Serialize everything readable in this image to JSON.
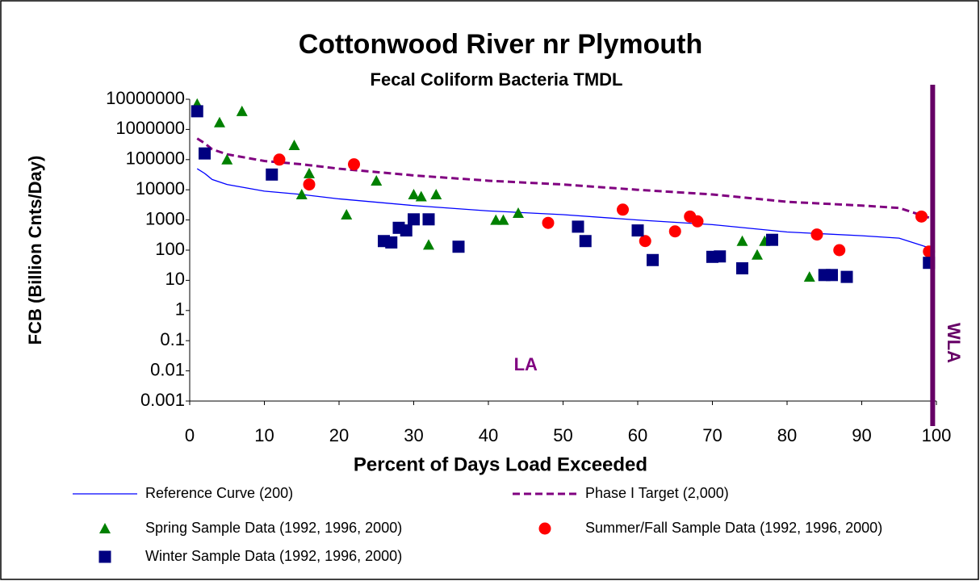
{
  "chart_data": {
    "type": "scatter",
    "title": "Cottonwood River nr Plymouth",
    "subtitle": "Fecal Coliform Bacteria TMDL",
    "x_label": "Percent of Days Load Exceeded",
    "y_label": "FCB (Billion Cnts/Day)",
    "xlim": [
      0,
      100
    ],
    "xticks": [
      0,
      10,
      20,
      30,
      40,
      50,
      60,
      70,
      80,
      90,
      100
    ],
    "ylim": [
      0.001,
      10000000
    ],
    "yticks": [
      0.001,
      0.01,
      0.1,
      1,
      10,
      100,
      1000,
      10000,
      100000,
      1000000,
      10000000
    ],
    "y_scale": "log",
    "grid": false,
    "annotations": [
      {
        "text": "LA",
        "x": 45,
        "y": 0.015,
        "color": "#800080"
      }
    ],
    "reference_line": {
      "label": "WLA",
      "x": 99.5,
      "color": "#660066"
    },
    "series": [
      {
        "name": "Reference Curve (200)",
        "style": "line",
        "color": "#0000ff",
        "x": [
          1,
          2,
          3,
          5,
          10,
          15,
          20,
          30,
          40,
          50,
          60,
          70,
          80,
          90,
          95,
          99
        ],
        "values": [
          50000,
          35000,
          22000,
          15000,
          9000,
          7000,
          5000,
          3000,
          2000,
          1500,
          1000,
          700,
          400,
          300,
          250,
          120
        ]
      },
      {
        "name": "Phase I Target (2,000)",
        "style": "dashed",
        "color": "#800080",
        "x": [
          1,
          2,
          3,
          5,
          10,
          15,
          20,
          30,
          40,
          50,
          60,
          70,
          80,
          90,
          95,
          99
        ],
        "values": [
          500000,
          350000,
          220000,
          150000,
          90000,
          70000,
          50000,
          30000,
          20000,
          15000,
          10000,
          7000,
          4000,
          3000,
          2500,
          1200
        ]
      },
      {
        "name": "Spring Sample Data (1992, 1996, 2000)",
        "style": "triangle",
        "color": "#008000",
        "x": [
          1,
          4,
          5,
          7,
          14,
          15,
          16,
          21,
          25,
          30,
          31,
          32,
          33,
          41,
          42,
          44,
          74,
          76,
          77,
          83
        ],
        "values": [
          7000000,
          1700000,
          100000,
          4000000,
          300000,
          7000,
          35000,
          1500,
          20000,
          7000,
          6000,
          150,
          7000,
          1000,
          1000,
          1700,
          200,
          70,
          200,
          13
        ]
      },
      {
        "name": "Summer/Fall Sample Data (1992, 1996, 2000)",
        "style": "circle",
        "color": "#ff0000",
        "x": [
          12,
          16,
          22,
          48,
          58,
          61,
          65,
          67,
          68,
          84,
          87,
          98,
          99
        ],
        "values": [
          100000,
          15000,
          70000,
          800,
          2200,
          200,
          420,
          1300,
          900,
          330,
          100,
          1300,
          90
        ]
      },
      {
        "name": "Winter Sample Data (1992, 1996, 2000)",
        "style": "square",
        "color": "#000080",
        "x": [
          1,
          2,
          11,
          26,
          27,
          28,
          29,
          30,
          32,
          36,
          52,
          53,
          60,
          62,
          70,
          71,
          74,
          78,
          85,
          86,
          88,
          99
        ],
        "values": [
          4000000,
          160000,
          32000,
          200,
          180,
          550,
          450,
          1050,
          1050,
          130,
          600,
          200,
          450,
          47,
          60,
          62,
          25,
          220,
          15,
          15,
          13,
          38
        ]
      }
    ]
  }
}
